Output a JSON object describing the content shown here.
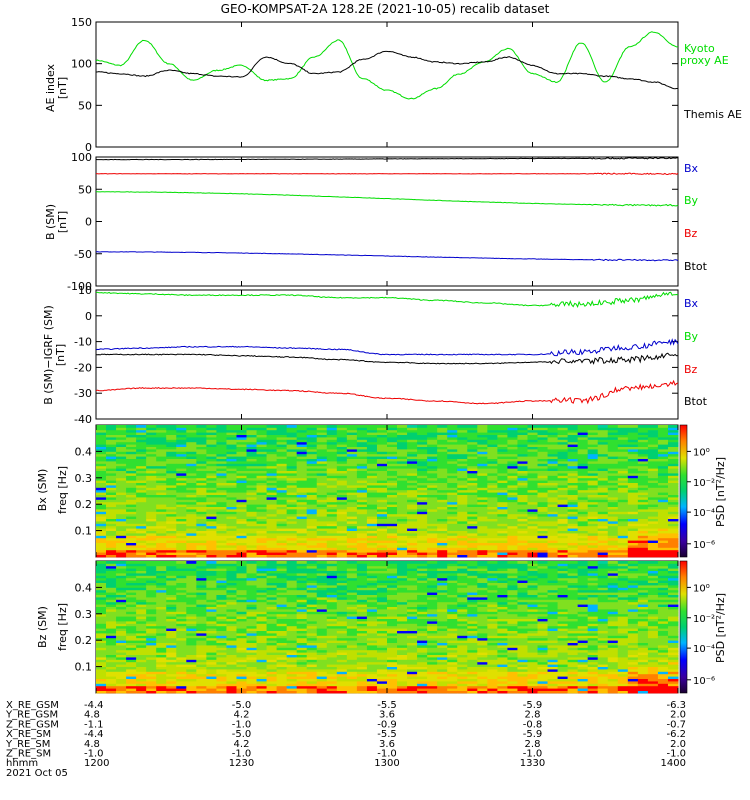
{
  "title": "GEO-KOMPSAT-2A 128.2E (2021-10-05) recalib dataset",
  "colors": {
    "black": "#000000",
    "green": "#00dd00",
    "red": "#ee0000",
    "blue": "#0000cc"
  },
  "chart_data": [
    {
      "type": "line",
      "ylabel": "AE index [nT]",
      "ylim": [
        0,
        150
      ],
      "yticks": [
        0,
        50,
        100,
        150
      ],
      "x": [
        1200,
        1205,
        1210,
        1215,
        1220,
        1225,
        1230,
        1235,
        1240,
        1245,
        1250,
        1255,
        1300,
        1305,
        1310,
        1315,
        1320,
        1325,
        1330,
        1335,
        1340,
        1345,
        1350,
        1355,
        1400
      ],
      "series": [
        {
          "name": "Kyoto proxy AE",
          "color": "green",
          "values": [
            104,
            98,
            128,
            100,
            80,
            92,
            98,
            80,
            82,
            108,
            128,
            82,
            68,
            58,
            70,
            88,
            102,
            118,
            88,
            78,
            125,
            78,
            120,
            138,
            120
          ]
        },
        {
          "name": "Themis AE",
          "color": "black",
          "values": [
            90,
            88,
            85,
            92,
            88,
            85,
            84,
            108,
            100,
            88,
            90,
            105,
            115,
            108,
            102,
            100,
            102,
            108,
            98,
            88,
            88,
            85,
            82,
            78,
            70
          ]
        }
      ]
    },
    {
      "type": "line",
      "ylabel": "B (SM) [nT]",
      "ylim": [
        -100,
        100
      ],
      "yticks": [
        -100,
        -50,
        0,
        50,
        100
      ],
      "x": [
        1200,
        1400
      ],
      "series": [
        {
          "name": "Bx",
          "color": "blue",
          "values": [
            -47,
            -60
          ]
        },
        {
          "name": "By",
          "color": "green",
          "values": [
            46,
            25
          ]
        },
        {
          "name": "Bz",
          "color": "red",
          "values": [
            74,
            74
          ]
        },
        {
          "name": "Btot",
          "color": "black",
          "values": [
            96,
            98
          ]
        }
      ]
    },
    {
      "type": "line",
      "ylabel": "B (SM)-IGRF (SM) [nT]",
      "ylim": [
        -40,
        10
      ],
      "yticks": [
        -40,
        -30,
        -20,
        -10,
        0,
        10
      ],
      "x": [
        1200,
        1210,
        1220,
        1230,
        1240,
        1250,
        1300,
        1310,
        1320,
        1330,
        1340,
        1350,
        1400
      ],
      "series": [
        {
          "name": "Bx",
          "color": "blue",
          "values": [
            -13,
            -12.5,
            -12,
            -12,
            -12.5,
            -13,
            -15,
            -15,
            -15,
            -15,
            -14,
            -12,
            -10
          ]
        },
        {
          "name": "By",
          "color": "green",
          "values": [
            9,
            8.5,
            8,
            8,
            8,
            7,
            7,
            6,
            5,
            4,
            4.5,
            6,
            9
          ]
        },
        {
          "name": "Bz",
          "color": "red",
          "values": [
            -29,
            -28,
            -28,
            -28.5,
            -29,
            -30,
            -32,
            -33,
            -34,
            -33,
            -33,
            -28,
            -26
          ]
        },
        {
          "name": "Btot",
          "color": "black",
          "values": [
            -15,
            -15,
            -15,
            -15.5,
            -16,
            -17,
            -18,
            -18.5,
            -18.5,
            -18,
            -17.5,
            -17,
            -15
          ]
        }
      ]
    },
    {
      "type": "heatmap",
      "ylabel": "Bx (SM) freq [Hz]",
      "yticks": [
        0.1,
        0.2,
        0.3,
        0.4
      ],
      "ylim": [
        0,
        0.5
      ],
      "colorbar_label": "PSD [nT²/Hz]",
      "colorbar_ticks": [
        "10⁰",
        "10⁻²",
        "10⁻⁴",
        "10⁻⁶"
      ]
    },
    {
      "type": "heatmap",
      "ylabel": "Bz (SM) freq [Hz]",
      "yticks": [
        0.1,
        0.2,
        0.3,
        0.4
      ],
      "ylim": [
        0,
        0.5
      ],
      "colorbar_label": "PSD [nT²/Hz]",
      "colorbar_ticks": [
        "10⁰",
        "10⁻²",
        "10⁻⁴",
        "10⁻⁶"
      ]
    }
  ],
  "ephemeris": {
    "row_labels": [
      "X_RE_GSM",
      "Y_RE_GSM",
      "Z_RE_GSM",
      "X_RE_SM",
      "Y_RE_SM",
      "Z_RE_SM",
      "hhmm"
    ],
    "columns": [
      [
        "-4.4",
        "4.8",
        "-1.1",
        "-4.4",
        "4.8",
        "-1.0",
        "1200"
      ],
      [
        "-5.0",
        "4.2",
        "-1.0",
        "-5.0",
        "4.2",
        "-1.0",
        "1230"
      ],
      [
        "-5.5",
        "3.6",
        "-0.9",
        "-5.5",
        "3.6",
        "-1.0",
        "1300"
      ],
      [
        "-5.9",
        "2.8",
        "-0.8",
        "-5.9",
        "2.8",
        "-1.0",
        "1330"
      ],
      [
        "-6.3",
        "2.0",
        "-0.7",
        "-6.2",
        "2.0",
        "-1.0",
        "1400"
      ]
    ],
    "date": "2021 Oct 05"
  }
}
